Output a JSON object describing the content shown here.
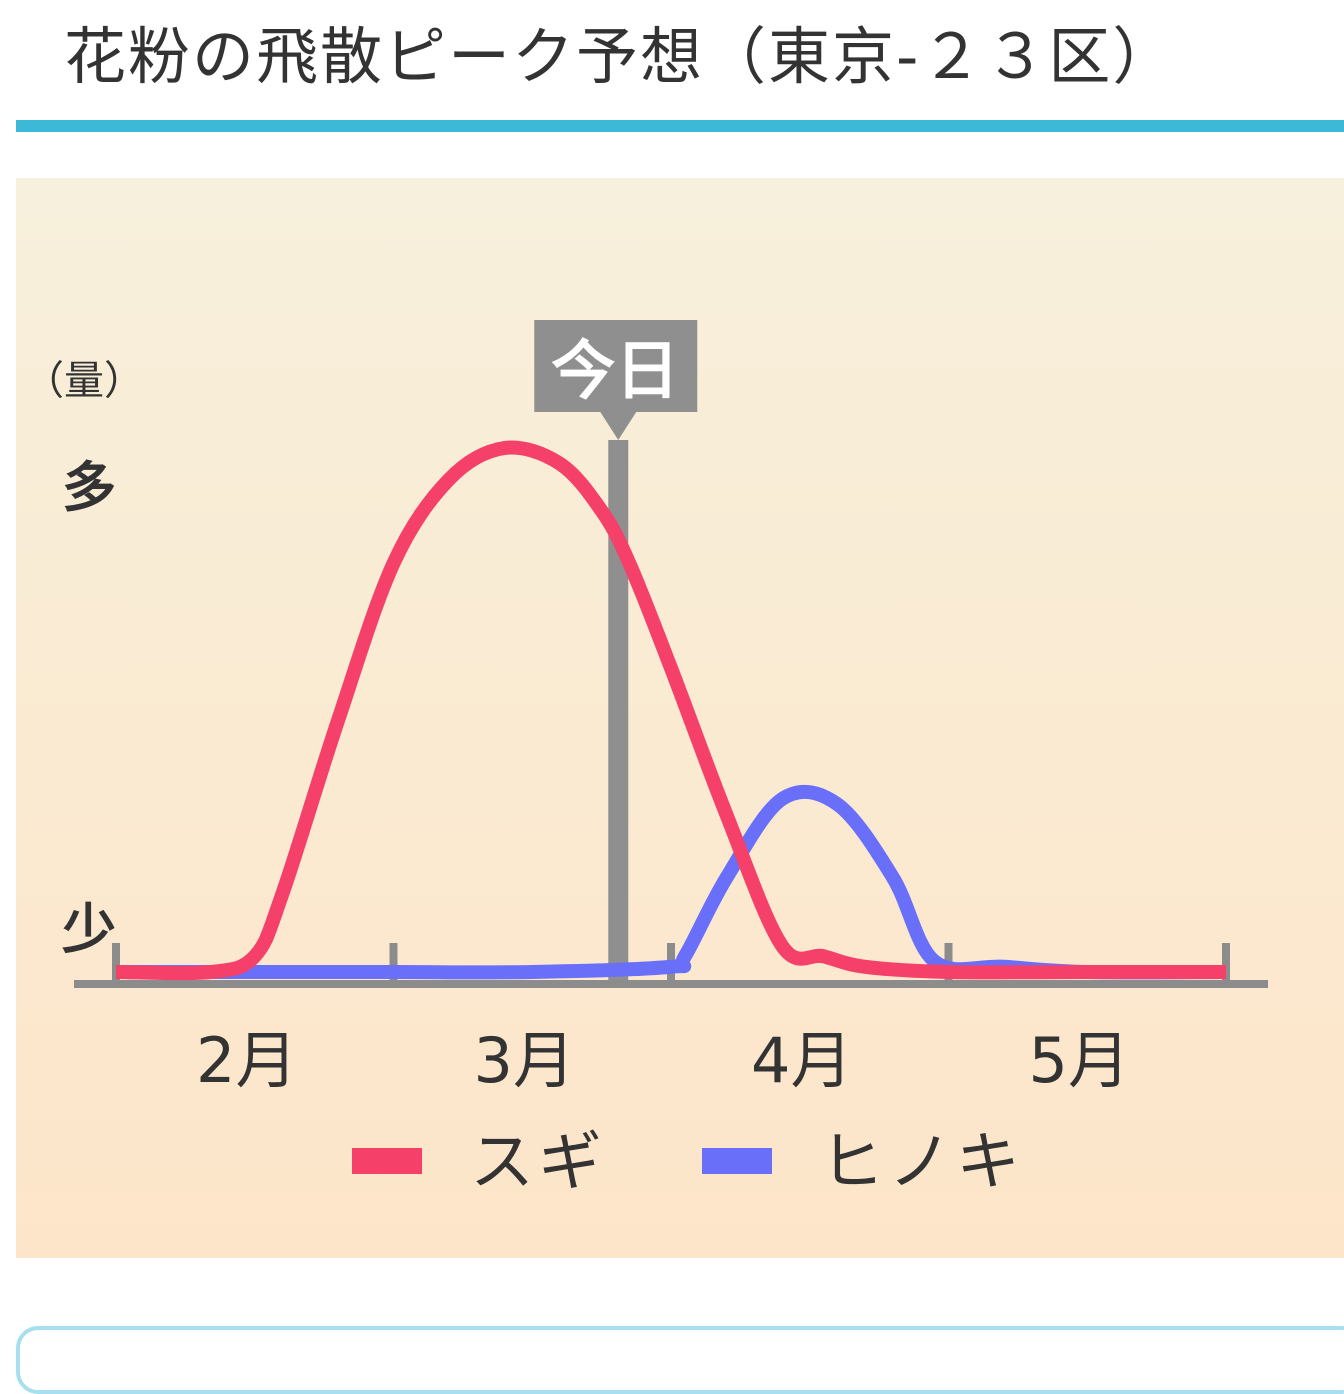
{
  "page": {
    "title": "花粉の飛散ピーク予想（東京-２３区）"
  },
  "colors": {
    "accent_rule": "#3bb9d6",
    "panel_top": "#f7f0dc",
    "panel_bottom": "#fde5c9",
    "axis": "#8c8c8c",
    "today_marker": "#8f8f8f",
    "card_border": "#a8dff0"
  },
  "chart_data": {
    "type": "line",
    "y_unit_label": "（量）",
    "y_high_label": "多",
    "y_low_label": "少",
    "x_ticks": [
      "2月",
      "3月",
      "4月",
      "5月"
    ],
    "today_label": "今日",
    "today_x": 2.81,
    "xlim": [
      1.0,
      5.0
    ],
    "ylim": [
      0,
      100
    ],
    "grid": false,
    "legend_position": "bottom-center",
    "series": [
      {
        "name": "スギ",
        "color": "#f5416a",
        "x": [
          1.0,
          1.34,
          1.5,
          1.6,
          1.8,
          2.0,
          2.2,
          2.4,
          2.6,
          2.75,
          2.85,
          3.0,
          3.2,
          3.4,
          3.55,
          3.7,
          4.0,
          4.5,
          5.0
        ],
        "y": [
          0,
          0,
          3,
          15,
          48,
          78,
          94,
          100,
          97,
          88,
          78,
          58,
          30,
          5,
          3,
          1,
          0,
          0,
          0
        ]
      },
      {
        "name": "ヒノキ",
        "color": "#6a6ffa",
        "x": [
          1.0,
          1.5,
          2.0,
          2.5,
          3.0,
          3.05,
          3.2,
          3.4,
          3.6,
          3.8,
          3.95,
          4.2,
          4.5,
          5.0
        ],
        "y": [
          0,
          0,
          0,
          0,
          1,
          3,
          18,
          33,
          32,
          18,
          2,
          1,
          0,
          0
        ]
      }
    ]
  }
}
